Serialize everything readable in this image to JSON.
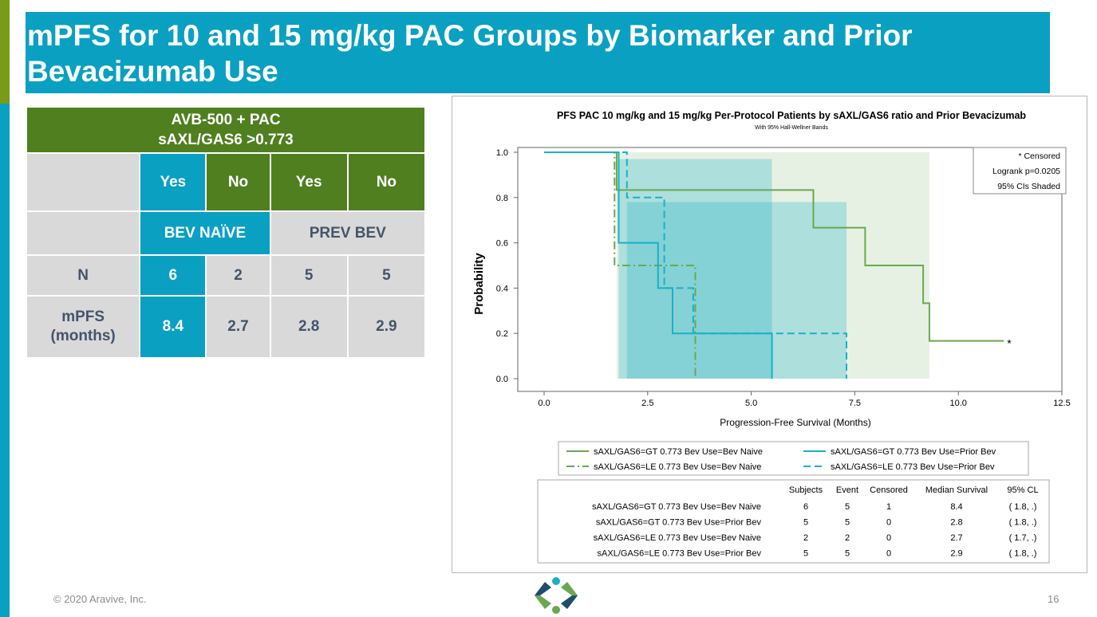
{
  "slide": {
    "title": "mPFS for 10 and 15 mg/kg PAC Groups by Biomarker and Prior Bevacizumab Use",
    "footer_copyright": "© 2020 Aravive, Inc.",
    "page_number": "16",
    "colors": {
      "teal": "#0aa0c2",
      "green": "#4f7f1f",
      "grey": "#d9d9d9"
    }
  },
  "summary_table": {
    "header_line1": "AVB-500 + PAC",
    "header_line2": "sAXL/GAS6 >0.773",
    "columns": [
      "Yes",
      "No",
      "Yes",
      "No"
    ],
    "groups": [
      "BEV NAÏVE",
      "PREV BEV"
    ],
    "rows": [
      {
        "label": "N",
        "values": [
          "6",
          "2",
          "5",
          "5"
        ]
      },
      {
        "label": "mPFS (months)",
        "values": [
          "8.4",
          "2.7",
          "2.8",
          "2.9"
        ]
      }
    ]
  },
  "chart_data": {
    "type": "line",
    "subtype": "kaplan-meier step",
    "title": "PFS PAC 10 mg/kg and 15 mg/kg Per-Protocol Patients by sAXL/GAS6 ratio and Prior Bevacizumab",
    "subtitle": "With 95% Hall-Wellner Bands",
    "xlabel": "Progression-Free Survival (Months)",
    "ylabel": "Probability",
    "xlim": [
      0,
      12.5
    ],
    "ylim": [
      0,
      1
    ],
    "xticks": [
      "0.0",
      "2.5",
      "5.0",
      "7.5",
      "10.0",
      "12.5"
    ],
    "yticks": [
      "0.0",
      "0.2",
      "0.4",
      "0.6",
      "0.8",
      "1.0"
    ],
    "inset_lines": [
      "* Censored",
      "Logrank p=0.0205",
      "95% CIs Shaded"
    ],
    "series": [
      {
        "name": "sAXL/GAS6=GT 0.773 Bev Use=Bev Naive",
        "color": "#6aa84f",
        "dash": "solid",
        "x": [
          0,
          1.75,
          1.75,
          6.5,
          6.5,
          7.75,
          7.75,
          9.15,
          9.15,
          9.3,
          9.3,
          11.1
        ],
        "y": [
          1,
          1,
          0.833,
          0.833,
          0.667,
          0.667,
          0.5,
          0.5,
          0.333,
          0.333,
          0.167,
          0.167
        ],
        "band": {
          "x": [
            1.75,
            9.3
          ],
          "lower": 0.0,
          "upper": 1.0
        },
        "censored": [
          {
            "x": 11.1,
            "y": 0.167
          }
        ]
      },
      {
        "name": "sAXL/GAS6=LE 0.773 Bev Use=Bev Naive",
        "color": "#6aa84f",
        "dash": "dash-dot",
        "x": [
          0,
          1.7,
          1.7,
          3.65,
          3.65
        ],
        "y": [
          1,
          1,
          0.5,
          0.5,
          0.0
        ]
      },
      {
        "name": "sAXL/GAS6=GT 0.773 Bev Use=Prior Bev",
        "color": "#1ab0c8",
        "dash": "solid",
        "x": [
          0,
          1.8,
          1.8,
          2.75,
          2.75,
          3.1,
          3.1,
          5.5,
          5.5
        ],
        "y": [
          1,
          1,
          0.6,
          0.6,
          0.4,
          0.4,
          0.2,
          0.2,
          0.0
        ],
        "band": {
          "x": [
            1.8,
            5.5
          ],
          "lower": 0.0,
          "upper": 0.97
        }
      },
      {
        "name": "sAXL/GAS6=LE 0.773 Bev Use=Prior Bev",
        "color": "#1ab0c8",
        "dash": "dashed",
        "x": [
          0,
          2.0,
          2.0,
          2.9,
          2.9,
          3.6,
          3.6,
          7.3,
          7.3
        ],
        "y": [
          1,
          1,
          0.8,
          0.8,
          0.4,
          0.4,
          0.2,
          0.2,
          0.0
        ],
        "band": {
          "x": [
            2.0,
            7.3
          ],
          "lower": 0.0,
          "upper": 0.78
        }
      }
    ],
    "legend": {
      "placement": "below plot",
      "entries": [
        {
          "label": "sAXL/GAS6=GT 0.773 Bev Use=Bev Naive",
          "color": "#6aa84f",
          "dash": "solid"
        },
        {
          "label": "sAXL/GAS6=GT 0.773 Bev Use=Prior Bev",
          "color": "#1ab0c8",
          "dash": "solid"
        },
        {
          "label": "sAXL/GAS6=LE 0.773 Bev Use=Bev Naive",
          "color": "#6aa84f",
          "dash": "dash-dot"
        },
        {
          "label": "sAXL/GAS6=LE 0.773 Bev Use=Prior Bev",
          "color": "#1ab0c8",
          "dash": "dashed"
        }
      ]
    },
    "stats_table": {
      "headers": [
        "Subjects",
        "Event",
        "Censored",
        "Median Survival",
        "95%  CL"
      ],
      "rows": [
        {
          "label": "sAXL/GAS6=GT 0.773 Bev Use=Bev Naive",
          "values": [
            "6",
            "5",
            "1",
            "8.4",
            "( 1.8,   .)"
          ]
        },
        {
          "label": "sAXL/GAS6=GT 0.773 Bev Use=Prior Bev",
          "values": [
            "5",
            "5",
            "0",
            "2.8",
            "( 1.8,   .)"
          ]
        },
        {
          "label": "sAXL/GAS6=LE 0.773 Bev Use=Bev Naive",
          "values": [
            "2",
            "2",
            "0",
            "2.7",
            "( 1.7,   .)"
          ]
        },
        {
          "label": "sAXL/GAS6=LE 0.773 Bev Use=Prior Bev",
          "values": [
            "5",
            "5",
            "0",
            "2.9",
            "( 1.8,   .)"
          ]
        }
      ]
    }
  }
}
